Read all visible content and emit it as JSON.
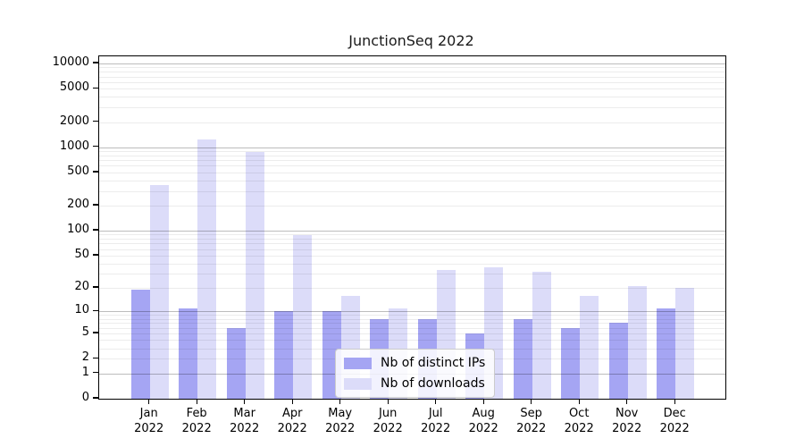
{
  "chart_data": {
    "type": "bar",
    "title": "JunctionSeq 2022",
    "xlabel": "",
    "ylabel": "",
    "scale": "log1p (y = log10(1+value))",
    "grid": "on",
    "legend_position": "lower center",
    "categories": [
      "Jan",
      "Feb",
      "Mar",
      "Apr",
      "May",
      "Jun",
      "Jul",
      "Aug",
      "Sep",
      "Oct",
      "Nov",
      "Dec"
    ],
    "year": "2022",
    "x_tick_labels": [
      "Jan\n2022",
      "Feb\n2022",
      "Mar\n2022",
      "Apr\n2022",
      "May\n2022",
      "Jun\n2022",
      "Jul\n2022",
      "Aug\n2022",
      "Sep\n2022",
      "Oct\n2022",
      "Nov\n2022",
      "Dec\n2022"
    ],
    "y_ticks": [
      0,
      1,
      2,
      5,
      10,
      20,
      50,
      100,
      200,
      500,
      1000,
      2000,
      5000,
      10000
    ],
    "ylim": [
      0,
      12000
    ],
    "series": [
      {
        "name": "Nb of distinct IPs",
        "color": "#a5a5f3",
        "values": [
          19,
          11,
          6,
          10,
          10,
          8,
          8,
          5,
          8,
          6,
          7,
          11
        ]
      },
      {
        "name": "Nb of downloads",
        "color": "#dcdcf9",
        "values": [
          350,
          1250,
          880,
          88,
          16,
          11,
          33,
          36,
          32,
          16,
          21,
          20
        ]
      }
    ],
    "colors": {
      "major_gridline": "#bdbdbd",
      "minor_gridline": "#ececec",
      "axis": "#000000",
      "background": "#ffffff"
    }
  }
}
